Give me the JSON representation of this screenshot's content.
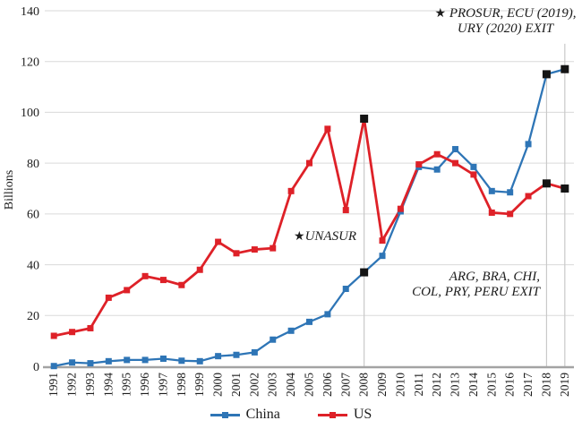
{
  "chart_data": {
    "type": "line",
    "title": "",
    "ylabel": "Billions",
    "ylim": [
      0,
      140
    ],
    "ytick_step": 20,
    "grid": true,
    "legend_position": "bottom",
    "categories": [
      "1991",
      "1992",
      "1993",
      "1994",
      "1995",
      "1996",
      "1997",
      "1998",
      "1999",
      "2000",
      "2001",
      "2002",
      "2003",
      "2004",
      "2005",
      "2006",
      "2007",
      "2008",
      "2009",
      "2010",
      "2011",
      "2012",
      "2013",
      "2014",
      "2015",
      "2016",
      "2017",
      "2018",
      "2019"
    ],
    "series": [
      {
        "name": "China",
        "color": "#2E75B6",
        "values": [
          0.1,
          1.5,
          1.2,
          2,
          2.5,
          2.5,
          3,
          2.2,
          2,
          4,
          4.5,
          5.5,
          10.5,
          14,
          17.5,
          20.5,
          30.5,
          37,
          43.5,
          61,
          78.5,
          77.5,
          85.5,
          78.5,
          69,
          68.5,
          87.5,
          115,
          117
        ],
        "highlight_categories": [
          "2008",
          "2018",
          "2019"
        ]
      },
      {
        "name": "US",
        "color": "#DE2128",
        "values": [
          12,
          13.5,
          15,
          27,
          30,
          35.5,
          34,
          32,
          38,
          49,
          44.5,
          46,
          46.5,
          69,
          80,
          93.5,
          61.5,
          97.5,
          49.5,
          62,
          79.5,
          83.5,
          80,
          75.5,
          60.5,
          60,
          67,
          72,
          70
        ],
        "highlight_categories": [
          "2008",
          "2018",
          "2019"
        ]
      }
    ],
    "highlight_marker_color": "#141414",
    "reference_lines": [
      {
        "category": "2008",
        "top_value": 99
      },
      {
        "category": "2018",
        "top_value": 115
      },
      {
        "category": "2019",
        "top_value": 127
      }
    ]
  },
  "annotations": {
    "prosur": {
      "star": "★",
      "line1": "PROSUR, ECU (2019),",
      "line2": "URY (2020) EXIT"
    },
    "unasur": {
      "star": "★",
      "label": "UNASUR"
    },
    "exit_note": {
      "line1": "ARG, BRA, CHI,",
      "line2": "COL, PRY, PERU EXIT"
    }
  },
  "legend": {
    "items": [
      {
        "label": "China",
        "color": "#2E75B6"
      },
      {
        "label": "US",
        "color": "#DE2128"
      }
    ]
  },
  "colors": {
    "gridline": "#dadada",
    "baseline": "#a3a3a3",
    "reference_line": "#c9c9c9",
    "text": "#1c1c1c",
    "background": "#ffffff"
  }
}
